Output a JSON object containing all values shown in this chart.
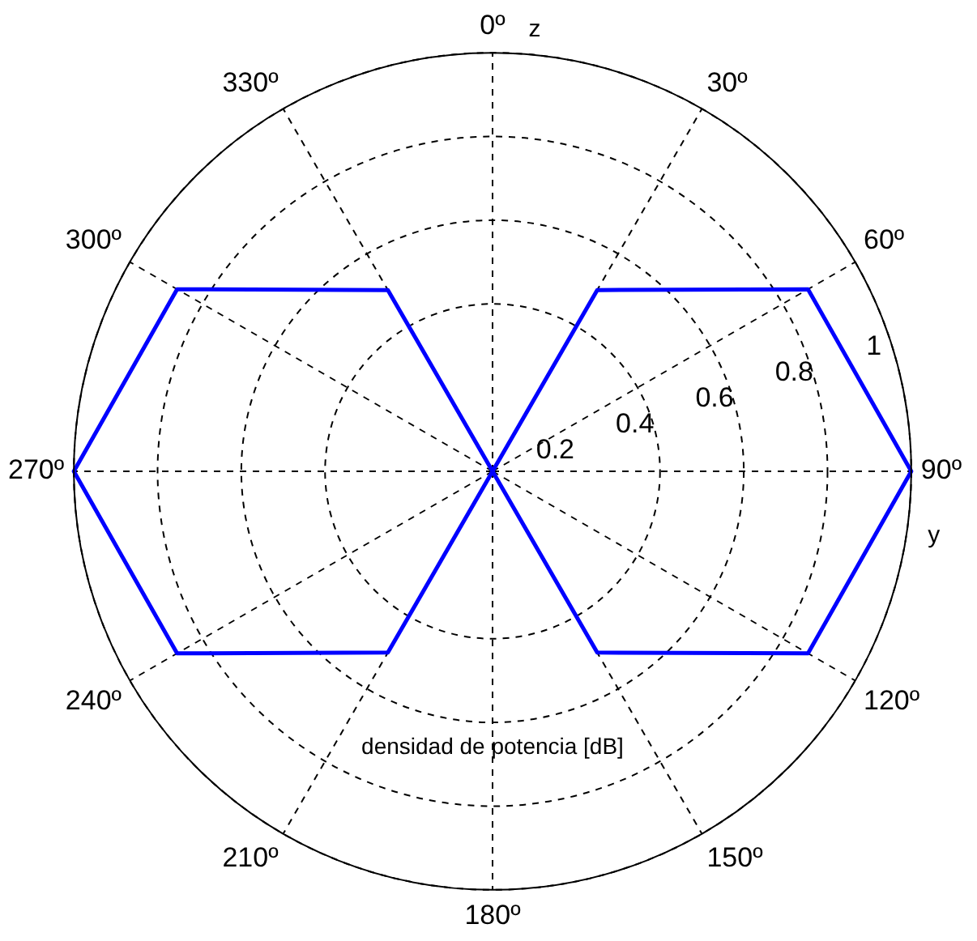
{
  "chart_data": {
    "type": "radar",
    "title": "densidad de potencia [dB]",
    "xlabel": "y",
    "ylabel": "z",
    "categories": [
      "0º",
      "30º",
      "60º",
      "90º",
      "120º",
      "150º",
      "180º",
      "210º",
      "240º",
      "270º",
      "300º",
      "330º"
    ],
    "series": [
      {
        "color": "#0000ff",
        "values": [
          0,
          0.5,
          0.87,
          1,
          0.87,
          0.5,
          0,
          0.5,
          0.87,
          1,
          0.87,
          0.5
        ]
      }
    ],
    "ylim": [
      0,
      1
    ],
    "yticks": [
      0.2,
      0.4,
      0.6,
      0.8,
      1
    ],
    "grid": true,
    "legend": false,
    "marker": "none",
    "line_style": "solid"
  }
}
